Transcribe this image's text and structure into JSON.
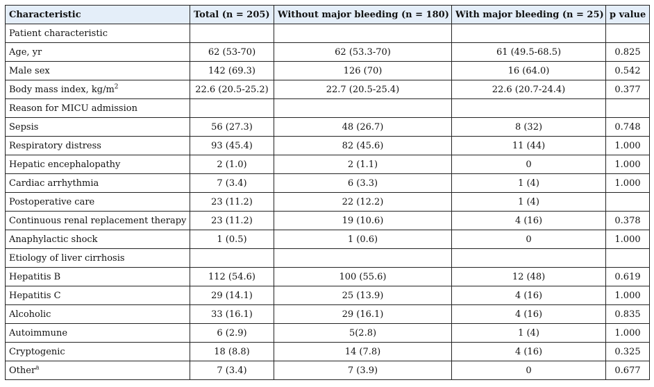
{
  "headers": [
    "Characteristic",
    "Total (n = 205)",
    "Without major bleeding (n = 180)",
    "With major bleeding (n = 25)",
    "p value"
  ],
  "rows": [
    {
      "label": "Patient characteristic",
      "sup": "",
      "total": "",
      "without": "",
      "with": "",
      "p": ""
    },
    {
      "label": "Age, yr",
      "sup": "",
      "total": "62 (53-70)",
      "without": "62 (53.3-70)",
      "with": "61 (49.5-68.5)",
      "p": "0.825"
    },
    {
      "label": "Male sex",
      "sup": "",
      "total": "142 (69.3)",
      "without": "126 (70)",
      "with": "16 (64.0)",
      "p": "0.542"
    },
    {
      "label": "Body mass index, kg/m",
      "sup": "2",
      "total": "22.6 (20.5-25.2)",
      "without": "22.7 (20.5-25.4)",
      "with": "22.6 (20.7-24.4)",
      "p": "0.377"
    },
    {
      "label": "Reason for MICU admission",
      "sup": "",
      "total": "",
      "without": "",
      "with": "",
      "p": ""
    },
    {
      "label": "Sepsis",
      "sup": "",
      "total": "56 (27.3)",
      "without": "48 (26.7)",
      "with": "8 (32)",
      "p": "0.748"
    },
    {
      "label": "Respiratory distress",
      "sup": "",
      "total": "93 (45.4)",
      "without": "82 (45.6)",
      "with": "11 (44)",
      "p": "1.000"
    },
    {
      "label": "Hepatic encephalopathy",
      "sup": "",
      "total": "2 (1.0)",
      "without": "2 (1.1)",
      "with": "0",
      "p": "1.000"
    },
    {
      "label": "Cardiac arrhythmia",
      "sup": "",
      "total": "7 (3.4)",
      "without": "6 (3.3)",
      "with": "1 (4)",
      "p": "1.000"
    },
    {
      "label": "Postoperative care",
      "sup": "",
      "total": "23 (11.2)",
      "without": "22 (12.2)",
      "with": "1 (4)",
      "p": ""
    },
    {
      "label": "Continuous renal replacement therapy",
      "sup": "",
      "total": "23 (11.2)",
      "without": "19 (10.6)",
      "with": "4 (16)",
      "p": "0.378"
    },
    {
      "label": "Anaphylactic shock",
      "sup": "",
      "total": "1 (0.5)",
      "without": "1 (0.6)",
      "with": "0",
      "p": "1.000"
    },
    {
      "label": "Etiology of liver cirrhosis",
      "sup": "",
      "total": "",
      "without": "",
      "with": "",
      "p": ""
    },
    {
      "label": "Hepatitis B",
      "sup": "",
      "total": "112 (54.6)",
      "without": "100 (55.6)",
      "with": "12 (48)",
      "p": "0.619"
    },
    {
      "label": "Hepatitis C",
      "sup": "",
      "total": "29 (14.1)",
      "without": "25 (13.9)",
      "with": "4 (16)",
      "p": "1.000"
    },
    {
      "label": "Alcoholic",
      "sup": "",
      "total": "33 (16.1)",
      "without": "29 (16.1)",
      "with": "4 (16)",
      "p": "0.835"
    },
    {
      "label": "Autoimmune",
      "sup": "",
      "total": "6 (2.9)",
      "without": "5(2.8)",
      "with": "1 (4)",
      "p": "1.000"
    },
    {
      "label": "Cryptogenic",
      "sup": "",
      "total": "18 (8.8)",
      "without": "14 (7.8)",
      "with": "4 (16)",
      "p": "0.325"
    },
    {
      "label": "Other",
      "sup": "a",
      "total": "7 (3.4)",
      "without": "7 (3.9)",
      "with": "0",
      "p": "0.677"
    }
  ]
}
